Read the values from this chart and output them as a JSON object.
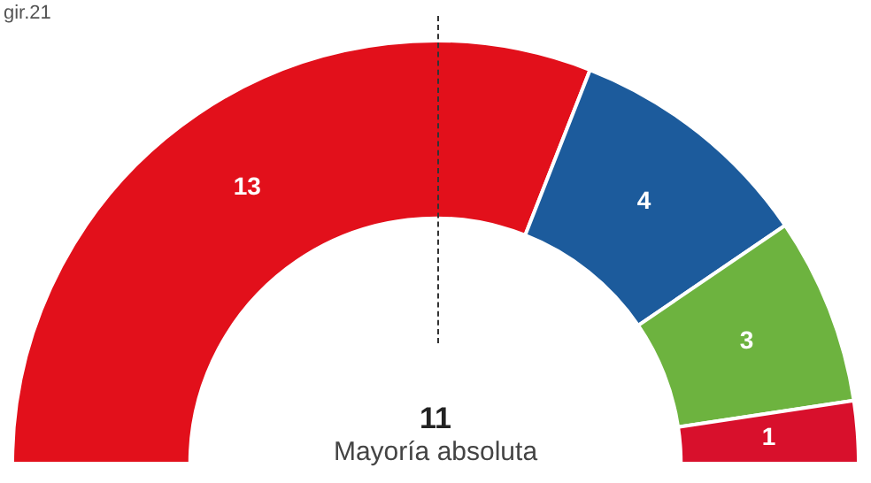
{
  "chart_data": {
    "type": "donut",
    "categories": [
      null,
      null,
      null,
      null
    ],
    "values": [
      13,
      4,
      3,
      1
    ],
    "colors": [
      "#e2101b",
      "#1c5b9c",
      "#6db33f",
      "#d8102c"
    ],
    "data_labels": true,
    "legend": false,
    "annotations": [
      "gir.21",
      "11",
      "Mayoría absoluta"
    ]
  }
}
